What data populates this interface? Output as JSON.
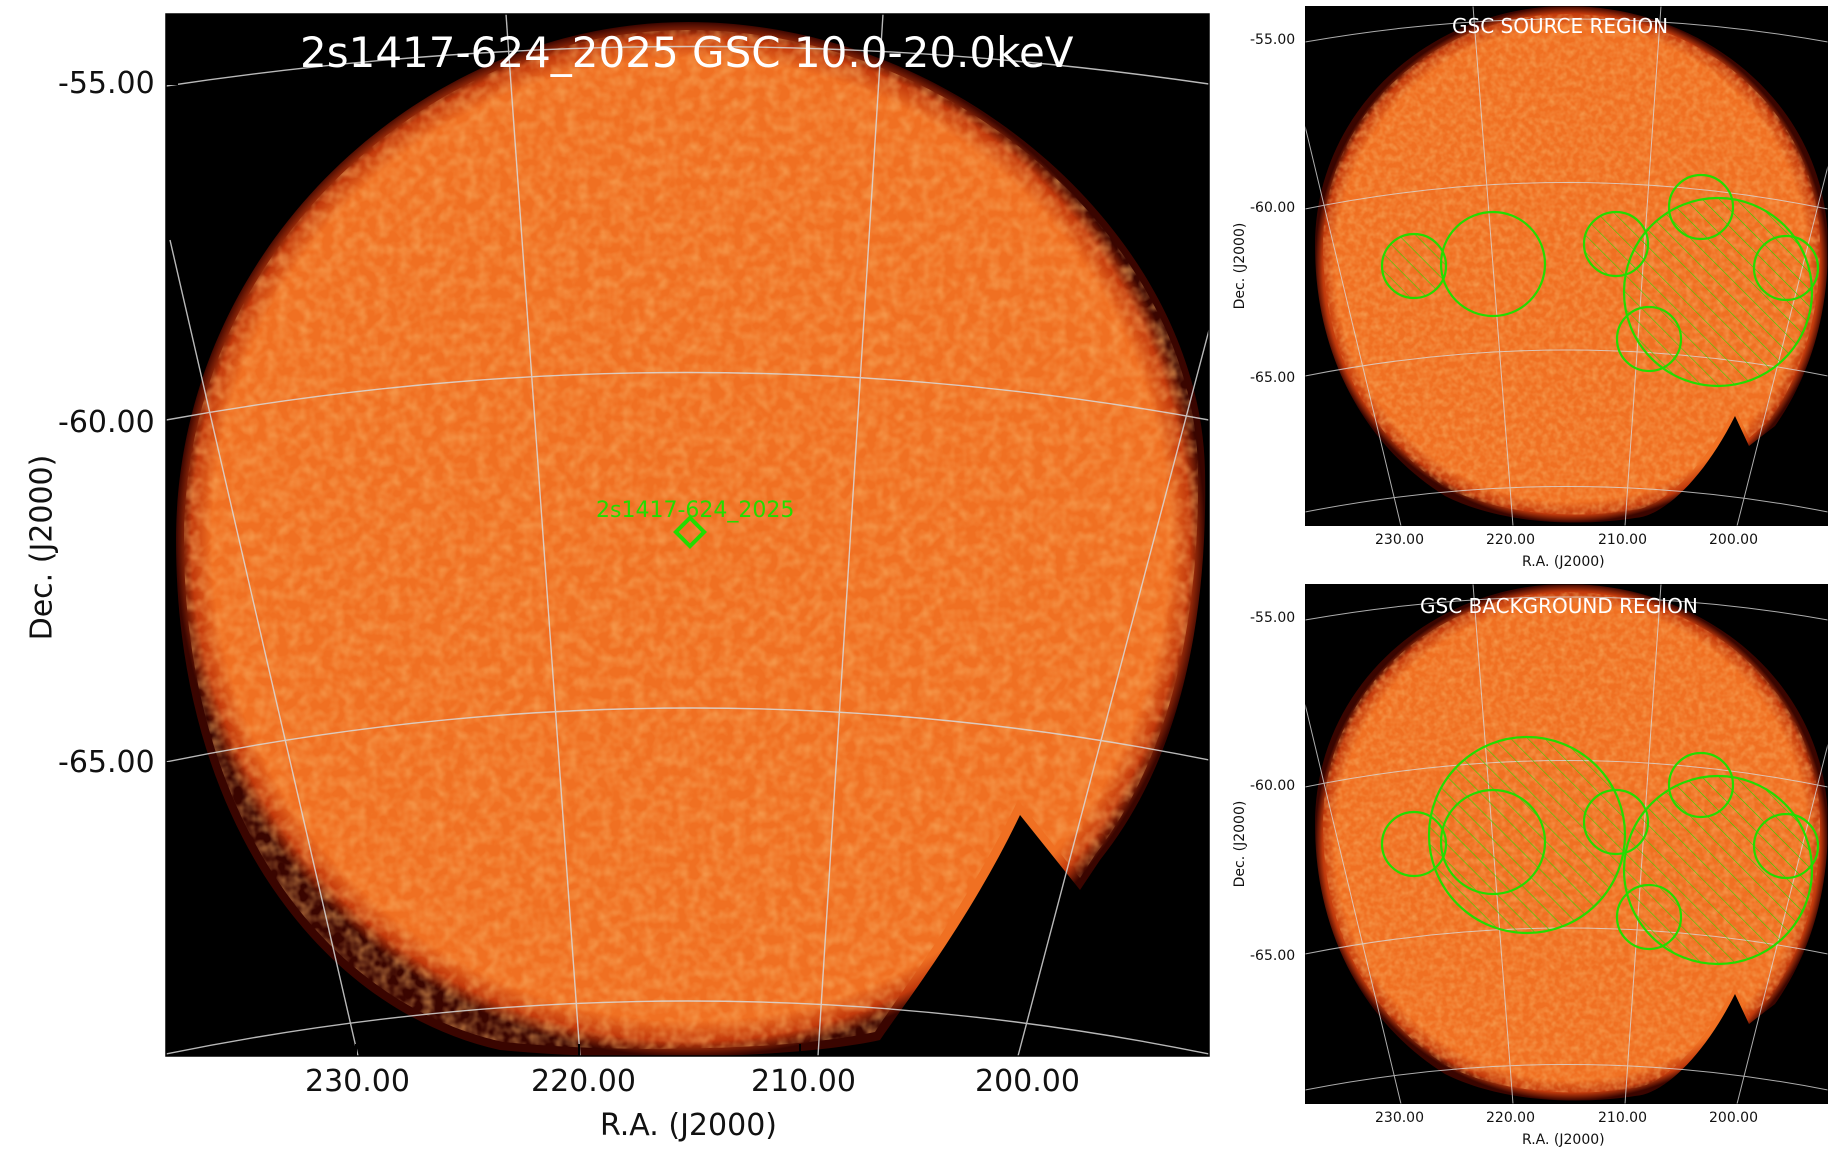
{
  "colors": {
    "image_fill": "#f07022",
    "image_fill_dark": "#e85a18",
    "image_fill_light": "#f58a3a",
    "edge_glow": "#8a1400",
    "background": "#000000",
    "region_green": "#22dd00",
    "grid": "#cfcfcf",
    "title_text": "#ffffff",
    "axis_text": "#111111"
  },
  "main_panel": {
    "title": "2s1417-624_2025 GSC 10.0-20.0keV",
    "xlabel": "R.A. (J2000)",
    "ylabel": "Dec. (J2000)",
    "ra_ticks": [
      "230.00",
      "220.00",
      "210.00",
      "200.00"
    ],
    "dec_ticks": [
      "-55.00",
      "-60.00",
      "-65.00"
    ],
    "source_label": "2s1417-624_2025",
    "source_marker": "green-diamond"
  },
  "source_panel": {
    "title": "GSC SOURCE REGION",
    "xlabel": "R.A. (J2000)",
    "ylabel": "Dec. (J2000)",
    "ra_ticks": [
      "230.00",
      "220.00",
      "210.00",
      "200.00"
    ],
    "dec_ticks": [
      "-55.00",
      "-60.00",
      "-65.00"
    ]
  },
  "background_panel": {
    "title": "GSC BACKGROUND REGION",
    "xlabel": "R.A. (J2000)",
    "ylabel": "Dec. (J2000)",
    "ra_ticks": [
      "230.00",
      "220.00",
      "210.00",
      "200.00"
    ],
    "dec_ticks": [
      "-55.00",
      "-60.00",
      "-65.00"
    ]
  }
}
